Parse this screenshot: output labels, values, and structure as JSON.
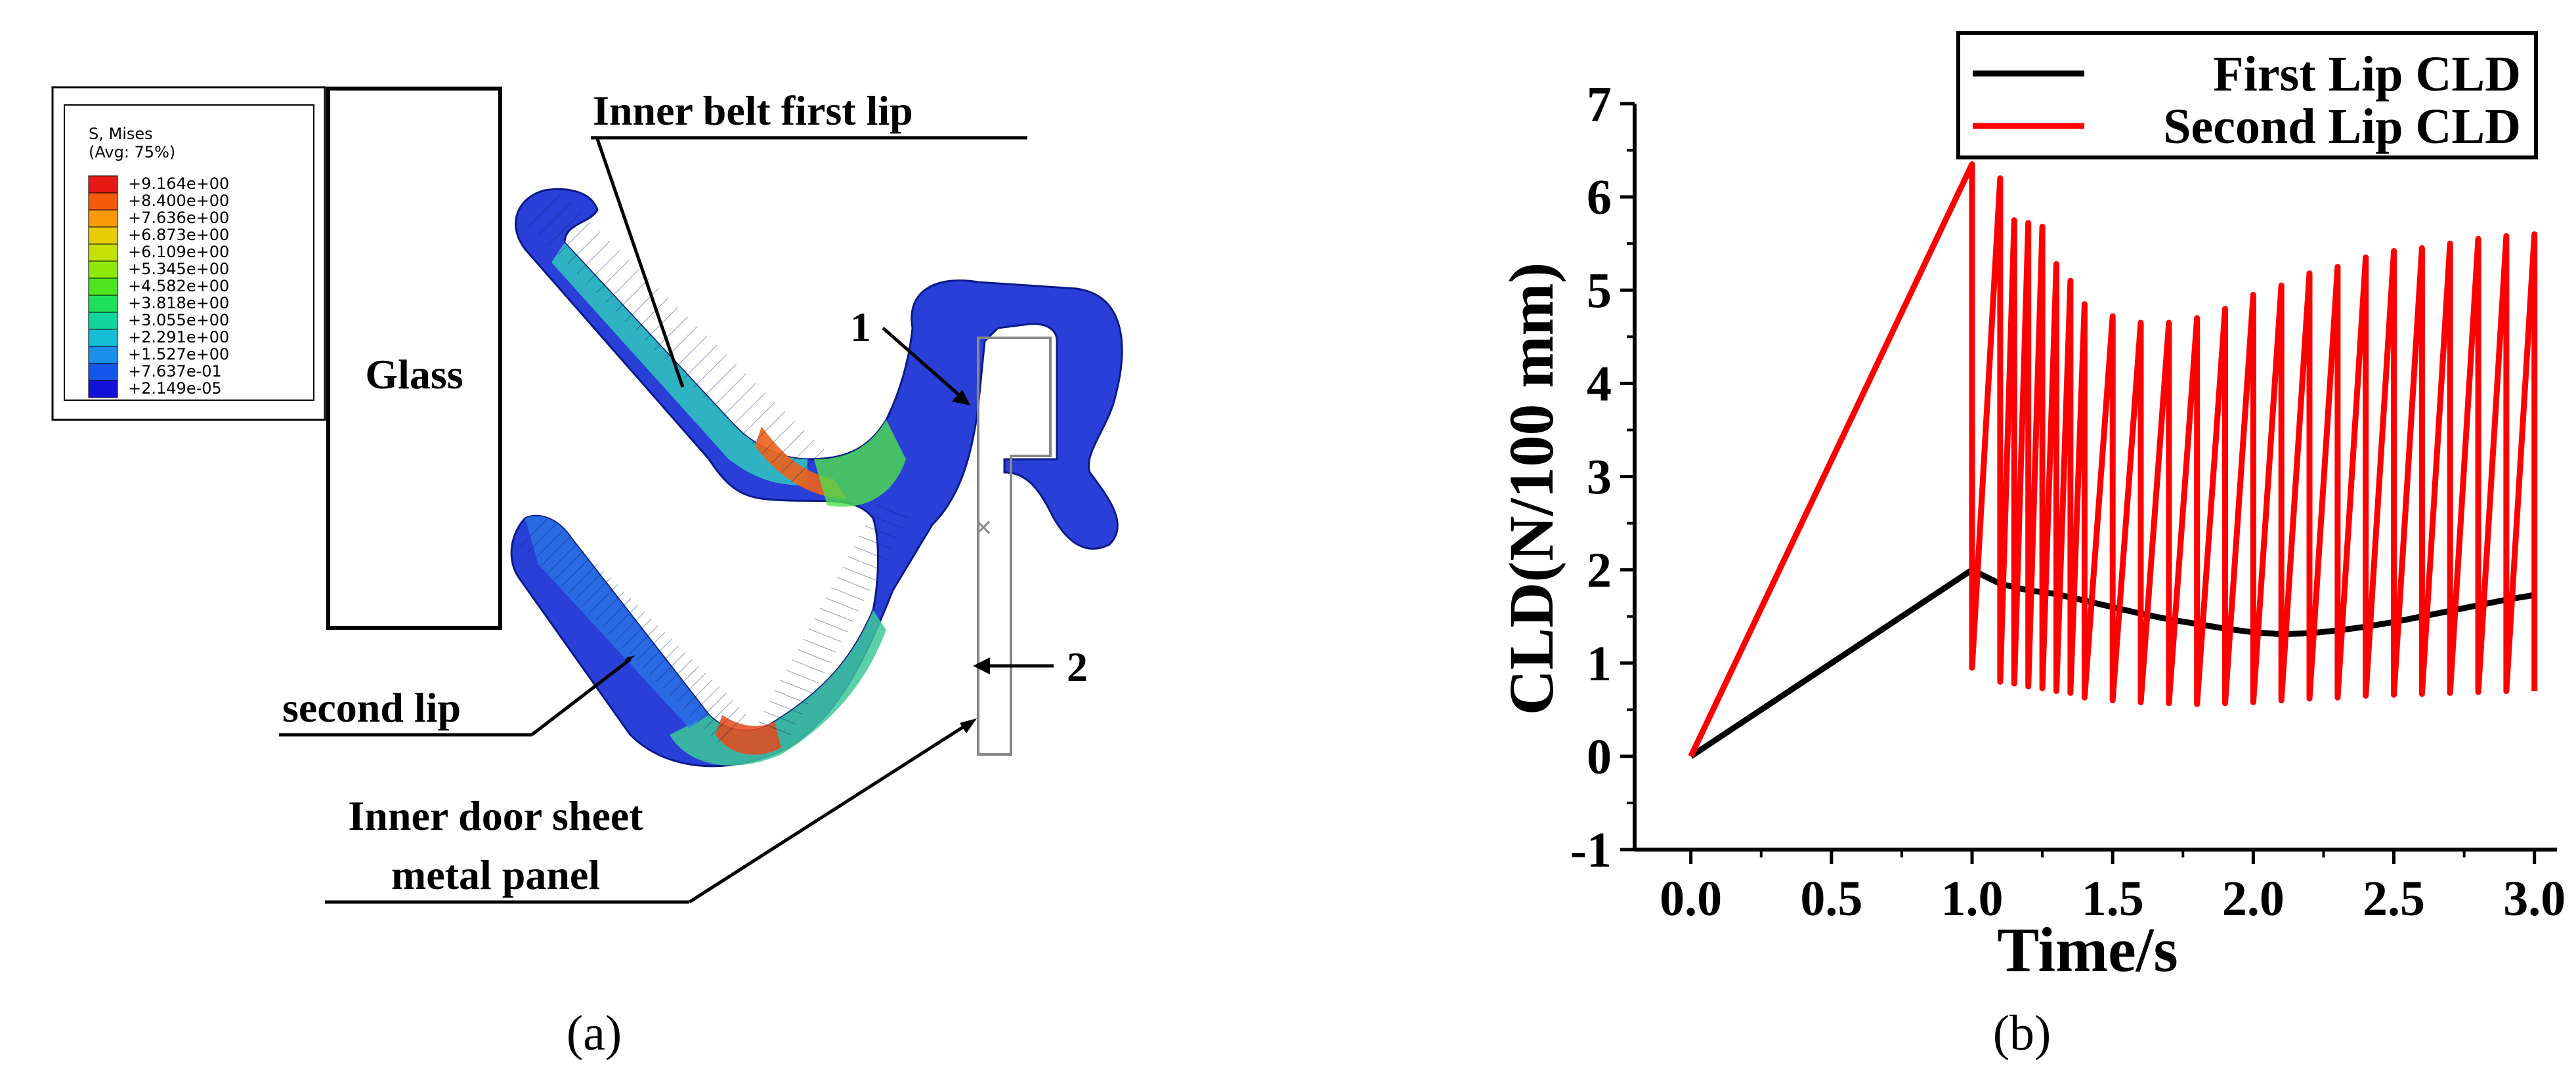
{
  "panel_a": {
    "caption": "(a)",
    "contour_legend": {
      "title": "S, Mises",
      "subtitle": "(Avg: 75%)",
      "entries": [
        "+9.164e+00",
        "+8.400e+00",
        "+7.636e+00",
        "+6.873e+00",
        "+6.109e+00",
        "+5.345e+00",
        "+4.582e+00",
        "+3.818e+00",
        "+3.055e+00",
        "+2.291e+00",
        "+1.527e+00",
        "+7.637e-01",
        "+2.149e-05"
      ],
      "colors": [
        "#e51a14",
        "#f45a0c",
        "#f89a08",
        "#e8cc06",
        "#c4e004",
        "#8ee80a",
        "#4ee420",
        "#1ee05a",
        "#12d49e",
        "#14bed6",
        "#1a8ee8",
        "#1656ea",
        "#1212d8"
      ]
    },
    "labels": {
      "glass": "Glass",
      "inner_belt_first_lip": "Inner belt first lip",
      "second_lip": "second lip",
      "door_sheet_line1": "Inner door sheet",
      "door_sheet_line2": "metal panel",
      "marker_1": "1",
      "marker_2": "2"
    }
  },
  "panel_b": {
    "caption": "(b)"
  },
  "chart_data": {
    "type": "line",
    "title": "",
    "xlabel": "Time/s",
    "ylabel": "CLD(N/100 mm)",
    "xlim": [
      -0.2,
      3.08
    ],
    "ylim": [
      -1,
      7
    ],
    "xticks": [
      0.0,
      0.5,
      1.0,
      1.5,
      2.0,
      2.5,
      3.0
    ],
    "xtick_labels": [
      "0.0",
      "0.5",
      "1.0",
      "1.5",
      "2.0",
      "2.5",
      "3.0"
    ],
    "yticks": [
      -1,
      0,
      1,
      2,
      3,
      4,
      5,
      6,
      7
    ],
    "ytick_labels": [
      "-1",
      "0",
      "1",
      "2",
      "3",
      "4",
      "5",
      "6",
      "7"
    ],
    "legend_position": "top-right",
    "series": [
      {
        "name": "First Lip CLD",
        "color": "#000000",
        "x": [
          0.0,
          1.0,
          1.1,
          1.2,
          1.3,
          1.4,
          1.5,
          1.6,
          1.7,
          1.8,
          1.9,
          2.0,
          2.1,
          2.2,
          2.3,
          2.4,
          2.5,
          2.6,
          2.7,
          2.8,
          2.9,
          3.0
        ],
        "y": [
          0.0,
          2.0,
          1.85,
          1.78,
          1.74,
          1.67,
          1.6,
          1.53,
          1.47,
          1.42,
          1.37,
          1.33,
          1.31,
          1.32,
          1.35,
          1.39,
          1.44,
          1.5,
          1.56,
          1.62,
          1.68,
          1.73
        ]
      },
      {
        "name": "Second Lip CLD",
        "color": "#ff0000",
        "x": [
          0.0,
          1.0,
          1.0,
          1.1,
          1.1,
          1.15,
          1.15,
          1.2,
          1.2,
          1.25,
          1.25,
          1.3,
          1.3,
          1.35,
          1.35,
          1.4,
          1.4,
          1.5,
          1.5,
          1.6,
          1.6,
          1.7,
          1.7,
          1.8,
          1.8,
          1.9,
          1.9,
          2.0,
          2.0,
          2.1,
          2.1,
          2.2,
          2.2,
          2.3,
          2.3,
          2.4,
          2.4,
          2.5,
          2.5,
          2.6,
          2.6,
          2.7,
          2.7,
          2.8,
          2.8,
          2.9,
          2.9,
          3.0,
          3.0
        ],
        "y": [
          0.0,
          6.35,
          0.95,
          6.2,
          0.8,
          5.75,
          0.78,
          5.72,
          0.75,
          5.68,
          0.73,
          5.28,
          0.7,
          5.1,
          0.68,
          4.85,
          0.63,
          4.72,
          0.6,
          4.65,
          0.58,
          4.65,
          0.57,
          4.7,
          0.56,
          4.8,
          0.57,
          4.95,
          0.58,
          5.05,
          0.6,
          5.18,
          0.62,
          5.25,
          0.63,
          5.35,
          0.65,
          5.42,
          0.66,
          5.45,
          0.67,
          5.5,
          0.68,
          5.55,
          0.69,
          5.58,
          0.7,
          5.6,
          0.7
        ]
      }
    ]
  }
}
